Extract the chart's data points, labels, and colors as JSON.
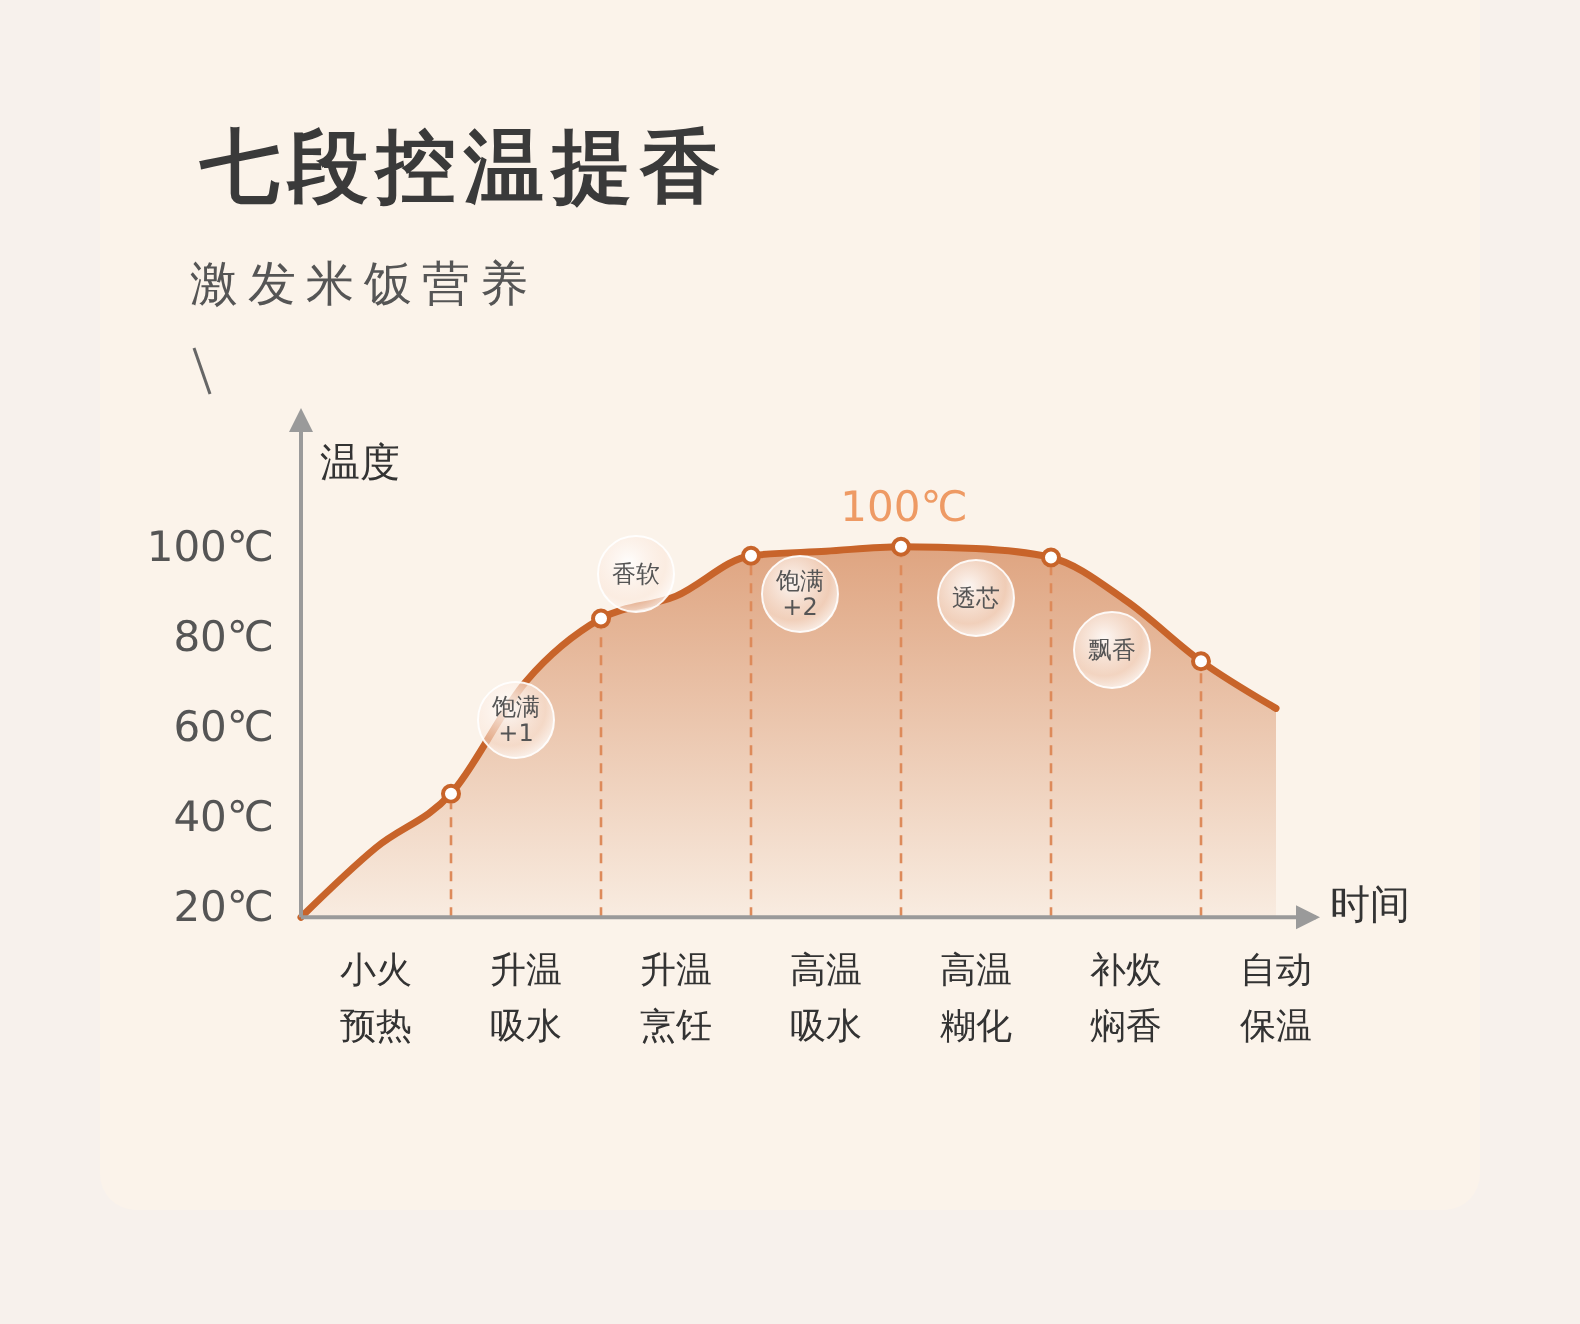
{
  "chart_data": {
    "type": "area",
    "title": "七段控温提香",
    "subtitle": "激发米饭营养",
    "xlabel": "时间",
    "ylabel": "温度",
    "categories": [
      null,
      "小火预热",
      null,
      "升温吸水",
      null,
      "升温烹饪",
      null,
      "高温吸水",
      null,
      "高温糊化",
      null,
      "补炊焖香",
      null,
      "自动保温"
    ],
    "ylim": [
      17.5,
      130
    ],
    "yticks": [
      {
        "value": 20,
        "label": "20℃"
      },
      {
        "value": 40,
        "label": "40℃"
      },
      {
        "value": 60,
        "label": "60℃"
      },
      {
        "value": 80,
        "label": "80℃"
      },
      {
        "value": 100,
        "label": "100℃"
      }
    ],
    "series": [
      {
        "color": "#c8642a",
        "values": [
          17.5,
          33,
          45,
          70,
          84,
          89,
          98,
          99,
          100,
          99.6,
          97.6,
          88,
          74.5,
          64
        ]
      },
      {
        "type": "scatter",
        "marker": "circle",
        "color": "#c8642a",
        "values": [
          null,
          null,
          45,
          null,
          84,
          null,
          98,
          null,
          100,
          null,
          97.6,
          null,
          74.5,
          null
        ]
      }
    ],
    "annotations": [
      "100℃",
      "饱满\n+1",
      "香软",
      "饱满\n+2",
      "透芯",
      "飘香"
    ],
    "grid": false,
    "legend": false
  }
}
